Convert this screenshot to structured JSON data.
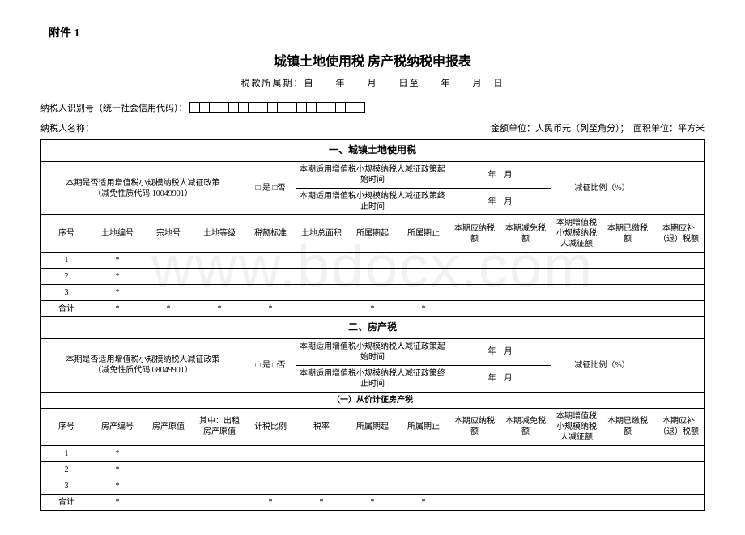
{
  "watermark": "www.bdocx.com",
  "attachment_label": "附件 1",
  "title": "城镇土地使用税 房产税纳税申报表",
  "period_line": "税款所属期：自　　年　　月　　日至　　年　　月　日",
  "taxpayer_id_label": "纳税人识别号（统一社会信用代码）：",
  "taxpayer_name_label": "纳税人名称：",
  "unit_label": "金额单位：人民币元（列至角分）；　面积单位：平方米",
  "section1": {
    "header": "一、城镇土地使用税",
    "policy_label": "本期是否适用增值税小规模纳税人减征政策\n（减免性质代码 10049901）",
    "yes_no": "□ 是 □否",
    "start_time_label": "本期适用增值税小规模纳税人减征政策起始时间",
    "end_time_label": "本期适用增值税小规模纳税人减征政策终止时间",
    "year_month": "年　月",
    "ratio_label": "减征比例（%）",
    "columns": [
      "序号",
      "土地编号",
      "宗地号",
      "土地等级",
      "税额标准",
      "土地总面积",
      "所属期起",
      "所属期止",
      "本期应纳税额",
      "本期减免税额",
      "本期增值税小规模纳税人减征额",
      "本期已缴税额",
      "本期应补（退）税额"
    ],
    "rows": [
      "1",
      "2",
      "3"
    ],
    "total_label": "合计"
  },
  "section2": {
    "header": "二、房产税",
    "policy_label": "本期是否适用增值税小规模纳税人减征政策\n（减免性质代码 08049901）",
    "yes_no": "□ 是 □否",
    "start_time_label": "本期适用增值税小规模纳税人减征政策起始时间",
    "end_time_label": "本期适用增值税小规模纳税人减征政策终止时间",
    "year_month": "年　月",
    "ratio_label": "减征比例（%）",
    "subsection": "（一）从价计征房产税",
    "columns": [
      "序号",
      "房产编号",
      "房产原值",
      "其中：出租房产原值",
      "计税比例",
      "税率",
      "所属期起",
      "所属期止",
      "本期应纳税额",
      "本期减免税额",
      "本期增值税小规模纳税人减征额",
      "本期已缴税额",
      "本期应补（退）税额"
    ],
    "rows": [
      "1",
      "2",
      "3"
    ],
    "total_label": "合计"
  },
  "star": "*"
}
